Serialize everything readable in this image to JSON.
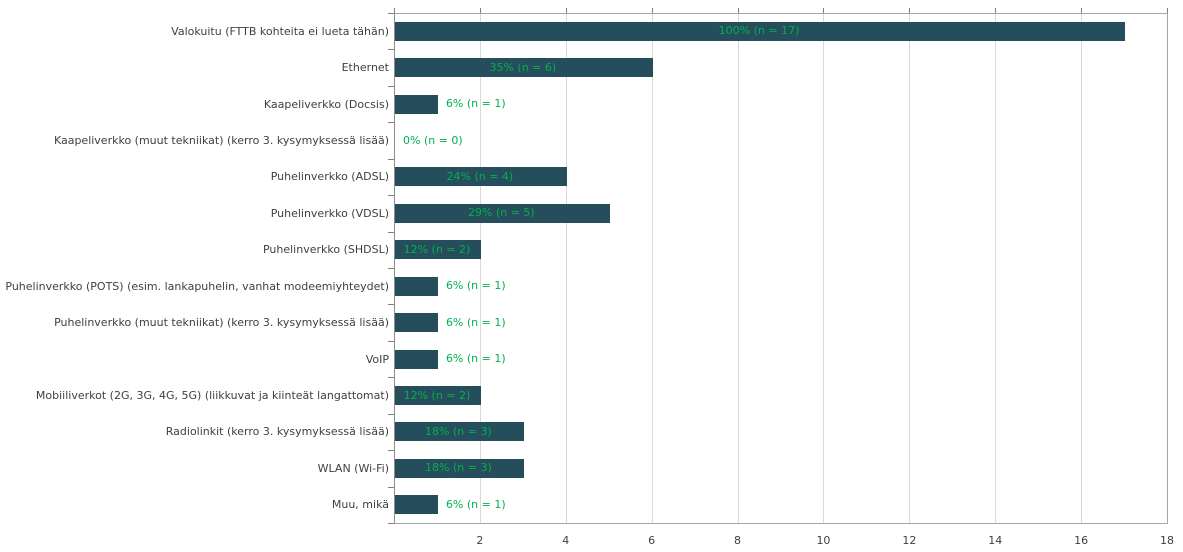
{
  "chart_data": {
    "type": "bar",
    "orientation": "horizontal",
    "title": "",
    "xlabel": "",
    "ylabel": "",
    "xlim": [
      0,
      18
    ],
    "xticks": [
      2,
      4,
      6,
      8,
      10,
      12,
      14,
      16,
      18
    ],
    "grid": true,
    "legend": false,
    "categories": [
      "Valokuitu (FTTB kohteita ei lueta tähän)",
      "Ethernet",
      "Kaapeliverkko (Docsis)",
      "Kaapeliverkko (muut tekniikat) (kerro 3. kysymyksessä lisää)",
      "Puhelinverkko (ADSL)",
      "Puhelinverkko (VDSL)",
      "Puhelinverkko (SHDSL)",
      "Puhelinverkko (POTS) (esim. lankapuhelin, vanhat modeemiyhteydet)",
      "Puhelinverkko (muut tekniikat) (kerro 3. kysymyksessä lisää)",
      "VoIP",
      "Mobiiliverkot (2G, 3G, 4G, 5G) (liikkuvat ja kiinteät langattomat)",
      "Radiolinkit (kerro 3. kysymyksessä lisää)",
      "WLAN (Wi-Fi)",
      "Muu, mikä"
    ],
    "values": [
      17,
      6,
      1,
      0,
      4,
      5,
      2,
      1,
      1,
      1,
      2,
      3,
      3,
      1
    ],
    "percents": [
      100,
      35,
      6,
      0,
      24,
      29,
      12,
      6,
      6,
      6,
      12,
      18,
      18,
      6
    ],
    "data_labels": [
      "100% (n = 17)",
      "35% (n = 6)",
      "6% (n = 1)",
      "0% (n = 0)",
      "24% (n = 4)",
      "29% (n = 5)",
      "12% (n = 2)",
      "6% (n = 1)",
      "6% (n = 1)",
      "6% (n = 1)",
      "12% (n = 2)",
      "18% (n = 3)",
      "18% (n = 3)",
      "6% (n = 1)"
    ],
    "colors": {
      "bar": "#254d5c",
      "data_label": "#00b050",
      "gridline": "#d9d9d9",
      "axis_line": "#8c8c8c",
      "border": "#a6a6a6",
      "tick": "#7f7f7f",
      "text": "#3f3f3f",
      "background": "#ffffff"
    }
  }
}
